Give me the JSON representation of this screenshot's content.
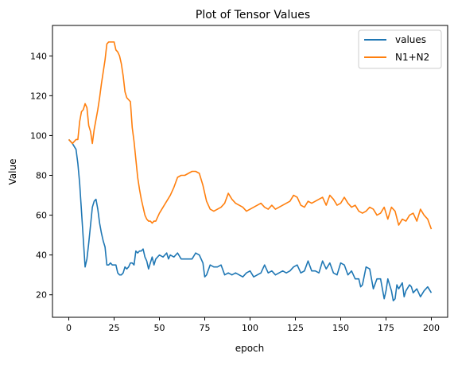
{
  "chart_data": {
    "type": "line",
    "title": "Plot of Tensor Values",
    "xlabel": "epoch",
    "ylabel": "Value",
    "xlim": [
      -9,
      209
    ],
    "ylim": [
      8.7,
      155.3
    ],
    "xticks": [
      0,
      25,
      50,
      75,
      100,
      125,
      150,
      175,
      200
    ],
    "yticks": [
      20,
      40,
      60,
      80,
      100,
      120,
      140
    ],
    "grid": false,
    "legend_position": "top-right",
    "series": [
      {
        "name": "values",
        "color": "#1f77b4",
        "x": [
          0,
          2,
          4,
          5,
          6,
          7,
          8,
          9,
          10,
          11,
          12,
          13,
          14,
          15,
          16,
          17,
          18,
          19,
          20,
          21,
          22,
          23,
          24,
          25,
          26,
          27,
          28,
          29,
          30,
          31,
          32,
          33,
          34,
          35,
          36,
          37,
          38,
          39,
          40,
          41,
          42,
          43,
          44,
          45,
          46,
          47,
          48,
          50,
          52,
          54,
          55,
          56,
          58,
          60,
          62,
          64,
          66,
          68,
          70,
          72,
          74,
          75,
          76,
          78,
          80,
          82,
          84,
          86,
          88,
          90,
          92,
          94,
          96,
          98,
          100,
          102,
          104,
          106,
          108,
          110,
          112,
          114,
          116,
          118,
          120,
          122,
          124,
          126,
          128,
          130,
          132,
          134,
          136,
          138,
          140,
          142,
          144,
          146,
          148,
          150,
          152,
          154,
          156,
          158,
          160,
          161,
          162,
          164,
          166,
          168,
          170,
          172,
          174,
          175,
          176,
          178,
          179,
          180,
          181,
          182,
          184,
          185,
          186,
          188,
          189,
          190,
          192,
          194,
          196,
          198,
          200
        ],
        "values": [
          98,
          96,
          93,
          86,
          76,
          62,
          48,
          34,
          38,
          46,
          55,
          64,
          67,
          68,
          63,
          56,
          51,
          47,
          44,
          35,
          35,
          36,
          35,
          35,
          35,
          31,
          30,
          30,
          31,
          34,
          33,
          34,
          36,
          36,
          35,
          42,
          41,
          42,
          42,
          43,
          39,
          37,
          33,
          36,
          39,
          35,
          38,
          40,
          39,
          41,
          38,
          40,
          39,
          41,
          38,
          38,
          38,
          38,
          41,
          40,
          36,
          29,
          30,
          35,
          34,
          34,
          35,
          30,
          31,
          30,
          31,
          30,
          29,
          31,
          32,
          29,
          30,
          31,
          35,
          31,
          32,
          30,
          31,
          32,
          31,
          32,
          34,
          35,
          31,
          32,
          37,
          32,
          32,
          31,
          37,
          33,
          36,
          31,
          30,
          36,
          35,
          30,
          32,
          28,
          28,
          24,
          25,
          34,
          33,
          23,
          28,
          28,
          18,
          22,
          28,
          22,
          17,
          18,
          25,
          23,
          26,
          19,
          22,
          25,
          24,
          21,
          23,
          19,
          22,
          24,
          21
        ]
      },
      {
        "name": "N1+N2",
        "color": "#ff7f0e",
        "x": [
          0,
          1,
          2,
          4,
          5,
          6,
          7,
          8,
          9,
          10,
          11,
          12,
          13,
          14,
          15,
          16,
          17,
          18,
          19,
          20,
          21,
          22,
          23,
          24,
          25,
          26,
          27,
          28,
          29,
          30,
          31,
          32,
          33,
          34,
          35,
          36,
          37,
          38,
          39,
          40,
          41,
          42,
          43,
          44,
          45,
          46,
          47,
          48,
          50,
          52,
          54,
          56,
          58,
          60,
          62,
          64,
          66,
          68,
          70,
          72,
          74,
          76,
          78,
          80,
          82,
          84,
          86,
          88,
          90,
          92,
          94,
          96,
          98,
          100,
          102,
          104,
          106,
          108,
          110,
          112,
          114,
          116,
          118,
          120,
          122,
          124,
          126,
          128,
          130,
          132,
          134,
          136,
          138,
          140,
          142,
          144,
          146,
          148,
          150,
          152,
          154,
          156,
          158,
          160,
          162,
          164,
          166,
          168,
          170,
          172,
          174,
          176,
          178,
          180,
          182,
          184,
          186,
          188,
          190,
          192,
          194,
          196,
          198,
          200
        ],
        "values": [
          98,
          97,
          96,
          98,
          98,
          107,
          112,
          113,
          116,
          114,
          105,
          102,
          96,
          103,
          108,
          113,
          119,
          126,
          132,
          138,
          146,
          147,
          147,
          147,
          147,
          143,
          142,
          140,
          136,
          130,
          122,
          119,
          118,
          117,
          104,
          97,
          88,
          79,
          73,
          68,
          64,
          60,
          58,
          57,
          57,
          56,
          57,
          57,
          61,
          64,
          67,
          70,
          74,
          79,
          80,
          80,
          81,
          82,
          82,
          81,
          75,
          67,
          63,
          62,
          63,
          64,
          66,
          71,
          68,
          66,
          65,
          64,
          62,
          63,
          64,
          65,
          66,
          64,
          63,
          65,
          63,
          64,
          65,
          66,
          67,
          70,
          69,
          65,
          64,
          67,
          66,
          67,
          68,
          69,
          65,
          70,
          68,
          65,
          66,
          69,
          66,
          64,
          65,
          62,
          61,
          62,
          64,
          63,
          60,
          61,
          64,
          58,
          64,
          62,
          55,
          58,
          57,
          60,
          61,
          57,
          63,
          60,
          58,
          53
        ]
      }
    ]
  }
}
